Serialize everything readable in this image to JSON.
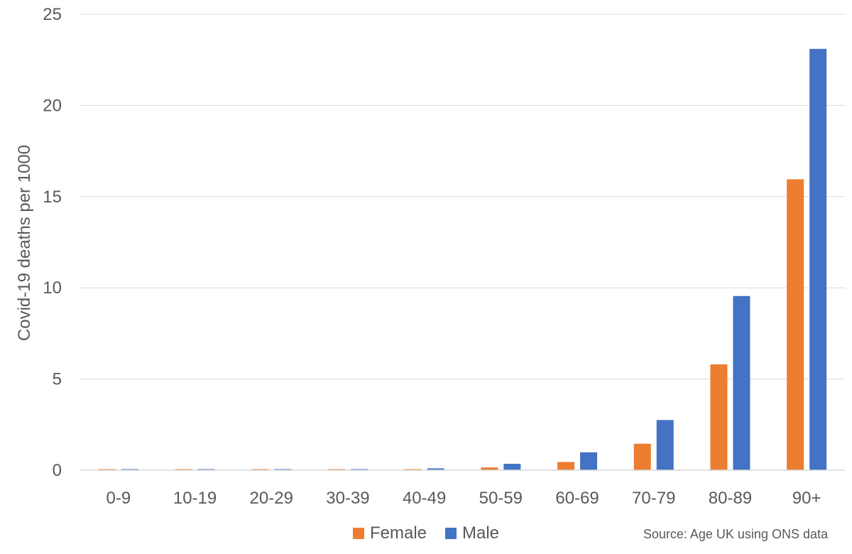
{
  "chart_data": {
    "type": "bar",
    "categories": [
      "0-9",
      "10-19",
      "20-29",
      "30-39",
      "40-49",
      "50-59",
      "60-69",
      "70-79",
      "80-89",
      "90+"
    ],
    "series": [
      {
        "name": "Female",
        "color": "#ED7D31",
        "values": [
          0.02,
          0.02,
          0.02,
          0.03,
          0.05,
          0.15,
          0.45,
          1.45,
          5.8,
          15.95
        ]
      },
      {
        "name": "Male",
        "color": "#4472C4",
        "values": [
          0.02,
          0.02,
          0.03,
          0.04,
          0.1,
          0.35,
          0.98,
          2.75,
          9.55,
          23.1
        ]
      }
    ],
    "ylabel": "Covid-19 deaths per 1000",
    "xlabel": "",
    "ylim": [
      0,
      25
    ],
    "yticks": [
      0,
      5,
      10,
      15,
      20,
      25
    ],
    "grid": true,
    "legend_position": "bottom"
  },
  "source": "Source: Age UK using ONS data"
}
